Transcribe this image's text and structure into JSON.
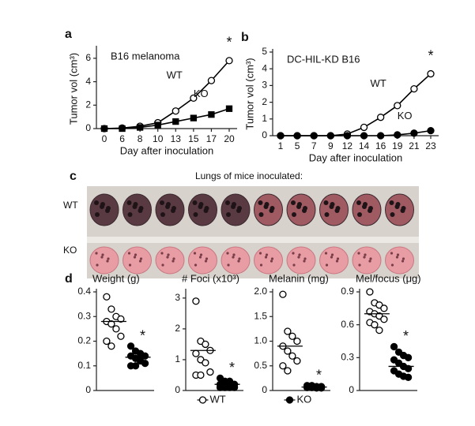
{
  "chart_data": [
    {
      "type": "line",
      "label": "a",
      "title": "B16 melanoma",
      "ylabel": "Tumor vol (cm³)",
      "xlabel": "Day after inoculation",
      "categories": [
        "0",
        "6",
        "8",
        "10",
        "13",
        "15",
        "17",
        "20"
      ],
      "series": [
        {
          "name": "WT",
          "color": "#000000",
          "marker": "open-circle",
          "values": [
            0,
            0.05,
            0.2,
            0.5,
            1.5,
            2.6,
            4.1,
            5.8
          ]
        },
        {
          "name": "KO",
          "color": "#000000",
          "marker": "square",
          "values": [
            0,
            0,
            0.1,
            0.3,
            0.6,
            0.9,
            1.2,
            1.7
          ]
        }
      ],
      "ylim": [
        0,
        6.8
      ],
      "yticks": [
        0,
        2,
        4,
        6
      ],
      "annotation": "*"
    },
    {
      "type": "line",
      "label": "b",
      "title": "DC-HIL-KD B16",
      "ylabel": "Tumor vol (cm³)",
      "xlabel": "Day after inoculation",
      "categories": [
        "1",
        "5",
        "7",
        "9",
        "12",
        "14",
        "16",
        "19",
        "21",
        "23"
      ],
      "series": [
        {
          "name": "WT",
          "color": "#000000",
          "marker": "open-circle",
          "values": [
            0,
            0,
            0,
            0,
            0.1,
            0.5,
            1.1,
            1.8,
            2.8,
            3.7
          ]
        },
        {
          "name": "KO",
          "color": "#000000",
          "marker": "circle",
          "values": [
            0,
            0,
            0,
            0,
            0,
            0,
            0,
            0.05,
            0.15,
            0.3
          ]
        }
      ],
      "ylim": [
        0,
        5
      ],
      "yticks": [
        0,
        1,
        2,
        3,
        4,
        5
      ],
      "annotation": "*"
    },
    {
      "type": "image",
      "label": "c",
      "title": "Lungs of mice inoculated:",
      "rows": [
        "WT",
        "KO"
      ]
    },
    {
      "type": "dot",
      "label": "d",
      "title": "Weight (g)",
      "series": [
        {
          "name": "WT",
          "marker": "open-circle",
          "values": [
            0.38,
            0.33,
            0.3,
            0.29,
            0.28,
            0.27,
            0.25,
            0.22,
            0.2,
            0.18
          ],
          "mean": 0.28
        },
        {
          "name": "KO",
          "marker": "circle",
          "values": [
            0.18,
            0.16,
            0.15,
            0.14,
            0.14,
            0.13,
            0.12,
            0.11,
            0.1,
            0.1
          ],
          "mean": 0.135
        }
      ],
      "ylim": [
        0,
        0.4
      ],
      "yticks": [
        0,
        0.1,
        0.2,
        0.3,
        0.4
      ],
      "annotation": "*"
    },
    {
      "type": "dot",
      "title": "# Foci (x10³)",
      "series": [
        {
          "name": "WT",
          "marker": "open-circle",
          "values": [
            2.9,
            1.6,
            1.5,
            1.3,
            1.2,
            1.0,
            0.9,
            0.6,
            0.5,
            0.5
          ],
          "mean": 1.3
        },
        {
          "name": "KO",
          "marker": "circle",
          "values": [
            0.4,
            0.3,
            0.3,
            0.2,
            0.2,
            0.2,
            0.1,
            0.1,
            0.1,
            0.1
          ],
          "mean": 0.2
        }
      ],
      "ylim": [
        0,
        3.2
      ],
      "yticks": [
        0,
        1,
        2,
        3
      ],
      "annotation": "*",
      "legend_series": 0
    },
    {
      "type": "dot",
      "title": "Melanin (mg)",
      "series": [
        {
          "name": "WT",
          "marker": "open-circle",
          "values": [
            1.95,
            1.2,
            1.1,
            1.0,
            0.9,
            0.8,
            0.7,
            0.6,
            0.5,
            0.4
          ],
          "mean": 0.9
        },
        {
          "name": "KO",
          "marker": "circle",
          "values": [
            0.1,
            0.1,
            0.08,
            0.08,
            0.06,
            0.06,
            0.05,
            0.05
          ],
          "mean": 0.07
        }
      ],
      "ylim": [
        0,
        2.0
      ],
      "yticks": [
        0,
        0.5,
        {
          "value": 1.0,
          "label": "1.0"
        },
        1.5,
        {
          "value": 2.0,
          "label": "2.0"
        }
      ],
      "annotation": "*",
      "legend_series": 1
    },
    {
      "type": "dot",
      "title": "Mel/focus (μg)",
      "series": [
        {
          "name": "WT",
          "marker": "open-circle",
          "values": [
            0.9,
            0.8,
            0.78,
            0.75,
            0.72,
            0.7,
            0.68,
            0.65,
            0.62,
            0.6,
            0.55
          ],
          "mean": 0.7
        },
        {
          "name": "KO",
          "marker": "circle",
          "values": [
            0.4,
            0.35,
            0.32,
            0.3,
            0.28,
            0.25,
            0.22,
            0.2,
            0.18,
            0.15,
            0.13,
            0.12
          ],
          "mean": 0.22
        }
      ],
      "ylim": [
        0,
        0.9
      ],
      "yticks": [
        0,
        0.3,
        0.6,
        0.9
      ],
      "annotation": "*"
    }
  ]
}
